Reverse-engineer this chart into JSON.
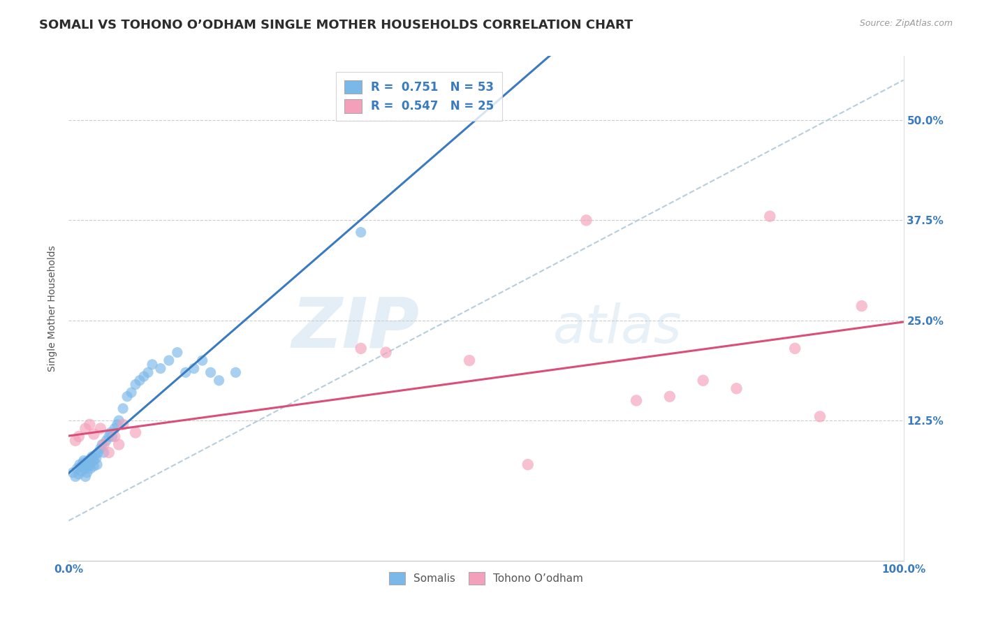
{
  "title": "SOMALI VS TOHONO O’ODHAM SINGLE MOTHER HOUSEHOLDS CORRELATION CHART",
  "source_text": "Source: ZipAtlas.com",
  "ylabel": "Single Mother Households",
  "xlim": [
    0.0,
    1.0
  ],
  "ylim": [
    -0.05,
    0.58
  ],
  "xtick_labels": [
    "0.0%",
    "100.0%"
  ],
  "xtick_positions": [
    0.0,
    1.0
  ],
  "ytick_labels": [
    "12.5%",
    "25.0%",
    "37.5%",
    "50.0%"
  ],
  "ytick_positions": [
    0.125,
    0.25,
    0.375,
    0.5
  ],
  "legend_r1": "R =  0.751   N = 53",
  "legend_r2": "R =  0.547   N = 25",
  "somali_color": "#7ab8e8",
  "tohono_color": "#f4a0bb",
  "regression_somali_color": "#3a7bbf",
  "regression_tohono_color": "#d94f7a",
  "regression_ref_color": "#b0c8d8",
  "watermark_zip": "ZIP",
  "watermark_atlas": "atlas",
  "somali_x": [
    0.005,
    0.008,
    0.01,
    0.012,
    0.013,
    0.015,
    0.015,
    0.017,
    0.018,
    0.02,
    0.02,
    0.021,
    0.022,
    0.023,
    0.024,
    0.025,
    0.026,
    0.027,
    0.028,
    0.03,
    0.03,
    0.032,
    0.033,
    0.034,
    0.035,
    0.038,
    0.04,
    0.042,
    0.045,
    0.048,
    0.05,
    0.052,
    0.055,
    0.058,
    0.06,
    0.065,
    0.07,
    0.075,
    0.08,
    0.085,
    0.09,
    0.095,
    0.1,
    0.11,
    0.12,
    0.13,
    0.14,
    0.15,
    0.16,
    0.17,
    0.18,
    0.2,
    0.35
  ],
  "somali_y": [
    0.06,
    0.055,
    0.065,
    0.058,
    0.07,
    0.062,
    0.068,
    0.072,
    0.075,
    0.055,
    0.065,
    0.07,
    0.06,
    0.075,
    0.068,
    0.072,
    0.065,
    0.078,
    0.08,
    0.068,
    0.075,
    0.082,
    0.078,
    0.07,
    0.085,
    0.09,
    0.095,
    0.085,
    0.1,
    0.105,
    0.11,
    0.105,
    0.115,
    0.12,
    0.125,
    0.14,
    0.155,
    0.16,
    0.17,
    0.175,
    0.18,
    0.185,
    0.195,
    0.19,
    0.2,
    0.21,
    0.185,
    0.19,
    0.2,
    0.185,
    0.175,
    0.185,
    0.36
  ],
  "tohono_x": [
    0.008,
    0.012,
    0.02,
    0.025,
    0.03,
    0.038,
    0.042,
    0.048,
    0.055,
    0.06,
    0.065,
    0.08,
    0.35,
    0.38,
    0.48,
    0.55,
    0.62,
    0.68,
    0.72,
    0.76,
    0.8,
    0.84,
    0.87,
    0.9,
    0.95
  ],
  "tohono_y": [
    0.1,
    0.105,
    0.115,
    0.12,
    0.108,
    0.115,
    0.095,
    0.085,
    0.105,
    0.095,
    0.12,
    0.11,
    0.215,
    0.21,
    0.2,
    0.07,
    0.375,
    0.15,
    0.155,
    0.175,
    0.165,
    0.38,
    0.215,
    0.13,
    0.268
  ],
  "background_color": "#ffffff",
  "grid_color": "#cccccc",
  "title_color": "#2c2c2c",
  "axis_label_color": "#555555",
  "tick_label_color": "#3a7bbf",
  "legend_text_color": "#3a7bbf",
  "title_fontsize": 13,
  "axis_label_fontsize": 10,
  "tick_fontsize": 11,
  "legend_fontsize": 12
}
